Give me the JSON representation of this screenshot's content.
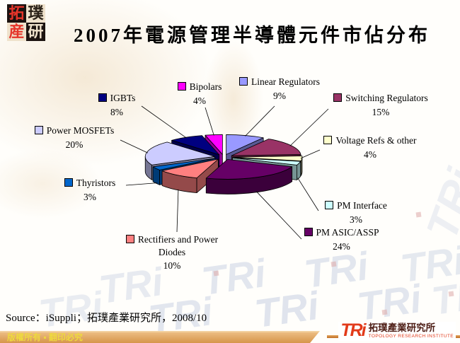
{
  "header": {
    "title": "2007年電源管理半導體元件市佔分布",
    "logo_chars": [
      "拓",
      "璞",
      "産",
      "研"
    ]
  },
  "chart_data": {
    "type": "pie",
    "style": "3d-exploded",
    "title": "2007年電源管理半導體元件市佔分布",
    "unit": "%",
    "legend_position": "labels-around-pie",
    "slices": [
      {
        "label": "Linear Regulators",
        "value": 9,
        "color": "#9999FF"
      },
      {
        "label": "Switching Regulators",
        "value": 15,
        "color": "#993366"
      },
      {
        "label": "Voltage Refs & other",
        "value": 4,
        "color": "#FFFFCC"
      },
      {
        "label": "PM Interface",
        "value": 3,
        "color": "#CCFFFF"
      },
      {
        "label": "PM ASIC/ASSP",
        "value": 24,
        "color": "#660066"
      },
      {
        "label": "Rectifiers and Power Diodes",
        "value": 10,
        "color": "#FF8080"
      },
      {
        "label": "Thyristors",
        "value": 3,
        "color": "#0066CC"
      },
      {
        "label": "Power MOSFETs",
        "value": 20,
        "color": "#CCCCFF"
      },
      {
        "label": "IGBTs",
        "value": 8,
        "color": "#000080"
      },
      {
        "label": "Bipolars",
        "value": 4,
        "color": "#FF00FF"
      }
    ]
  },
  "source_line": "Source：iSuppli；拓璞產業研究所，2008/10",
  "footer": {
    "copyright": "版權所有 ▪ 翻印必究",
    "logo_text": "TRi",
    "org_cn": "拓璞產業研究所",
    "org_en": "TOPOLOGY RESEARCH INSTITUTE"
  },
  "watermark_text": "TRi"
}
